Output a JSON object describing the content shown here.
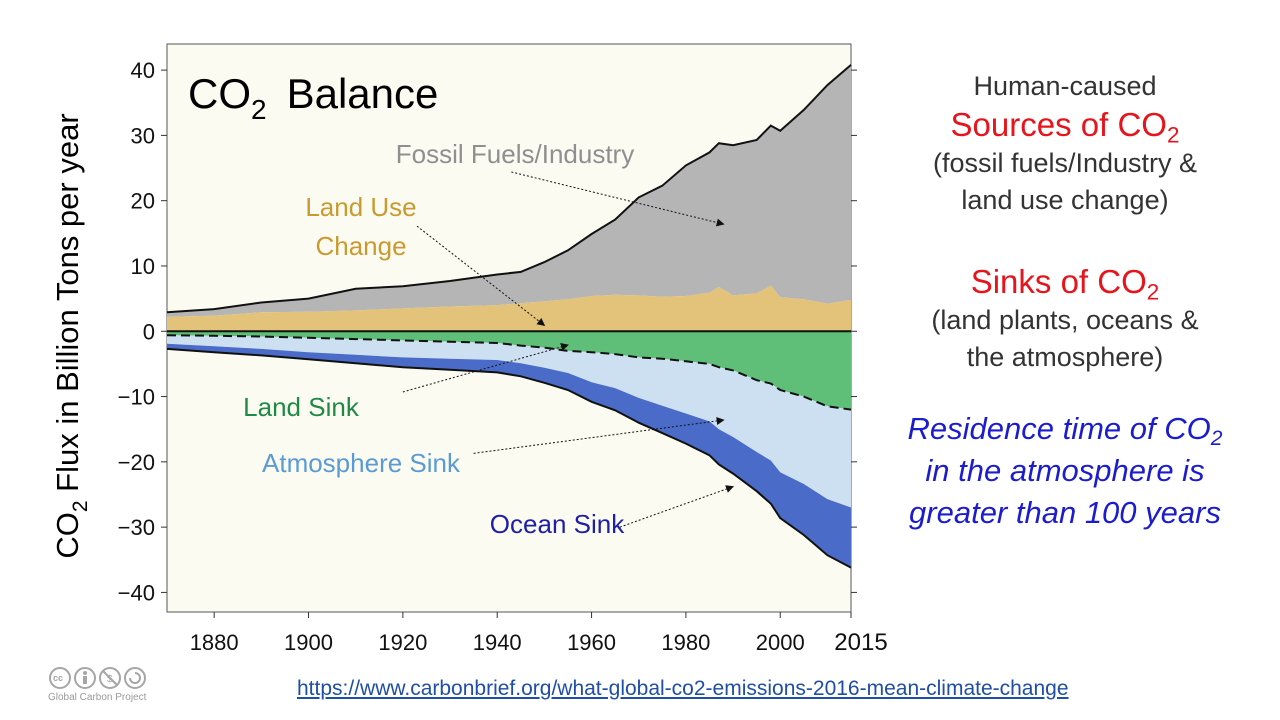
{
  "chart_data": {
    "type": "area",
    "title_main": "CO",
    "title_sub": "2",
    "title_rest": "Balance",
    "ylabel_prefix": "CO",
    "ylabel_sub": "2",
    "ylabel_rest": " Flux in Billion  Tons per year",
    "xlim": [
      1870,
      2015
    ],
    "ylim": [
      -43,
      44
    ],
    "y_ticks": [
      40,
      30,
      20,
      10,
      0,
      -10,
      -20,
      -30,
      -40
    ],
    "y_tick_labels": [
      "40",
      "30",
      "20",
      "10",
      "0",
      "−10",
      "−20",
      "−30",
      "−40"
    ],
    "x_ticks": [
      1880,
      1900,
      1920,
      1940,
      1960,
      1980,
      2000,
      2015
    ],
    "x_tick_labels": [
      "1880",
      "1900",
      "1920",
      "1940",
      "1960",
      "1980",
      "2000",
      "2015"
    ],
    "x": [
      1870,
      1880,
      1890,
      1900,
      1910,
      1920,
      1930,
      1940,
      1945,
      1950,
      1955,
      1960,
      1965,
      1970,
      1975,
      1980,
      1985,
      1987,
      1990,
      1995,
      1998,
      2000,
      2005,
      2010,
      2015
    ],
    "series": [
      {
        "name": "Land Use Change",
        "color": "#e3c27a",
        "values": [
          2.2,
          2.4,
          2.9,
          3.0,
          3.2,
          3.5,
          3.8,
          4.0,
          4.3,
          4.6,
          4.9,
          5.4,
          5.6,
          5.5,
          5.3,
          5.4,
          5.9,
          6.8,
          5.5,
          5.8,
          7.0,
          5.2,
          4.9,
          4.2,
          4.8
        ]
      },
      {
        "name": "Fossil Fuels/Industry",
        "color": "#b5b5b5",
        "values": [
          0.7,
          1.0,
          1.5,
          2.0,
          3.3,
          3.4,
          3.9,
          4.7,
          4.8,
          6.0,
          7.5,
          9.5,
          11.5,
          15.0,
          17.0,
          20.0,
          21.5,
          22.0,
          23.0,
          23.5,
          24.5,
          25.5,
          29.0,
          33.5,
          36.0
        ]
      },
      {
        "name": "Land Sink",
        "color": "#5fbf79",
        "values": [
          -0.6,
          -0.7,
          -0.8,
          -1.0,
          -1.2,
          -1.4,
          -1.6,
          -1.8,
          -2.2,
          -2.5,
          -3.0,
          -3.2,
          -3.5,
          -4.0,
          -4.2,
          -4.6,
          -5.0,
          -5.5,
          -6.0,
          -7.5,
          -8.0,
          -9.0,
          -10.0,
          -11.5,
          -12.0
        ]
      },
      {
        "name": "Atmosphere Sink",
        "color": "#cde0f1",
        "values": [
          -1.3,
          -1.6,
          -1.9,
          -2.2,
          -2.4,
          -2.6,
          -2.6,
          -2.6,
          -2.7,
          -3.1,
          -3.4,
          -4.6,
          -5.2,
          -6.2,
          -7.2,
          -8.0,
          -8.8,
          -9.5,
          -10.2,
          -11.0,
          -11.8,
          -12.6,
          -13.4,
          -14.2,
          -15.0
        ]
      },
      {
        "name": "Ocean Sink",
        "color": "#4a6cc8",
        "values": [
          -0.8,
          -0.9,
          -1.0,
          -1.1,
          -1.3,
          -1.5,
          -1.7,
          -1.9,
          -2.0,
          -2.3,
          -2.6,
          -3.0,
          -3.4,
          -3.8,
          -4.2,
          -4.6,
          -5.2,
          -5.4,
          -5.6,
          -6.0,
          -6.6,
          -7.0,
          -7.8,
          -8.6,
          -9.2
        ]
      }
    ],
    "annotations": {
      "fossil": "Fossil Fuels/Industry",
      "landuse_1": "Land Use",
      "landuse_2": "Change",
      "landsink": "Land Sink",
      "atmosink": "Atmosphere Sink",
      "oceansink": "Ocean Sink"
    },
    "grid": false,
    "legend": "none"
  },
  "right_panel": {
    "line1": "Human-caused",
    "sources_main": "Sources of CO",
    "sources_sub": "2",
    "sources_desc_1": "(fossil fuels/Industry &",
    "sources_desc_2": "land use change)",
    "sinks_main": "Sinks of CO",
    "sinks_sub": "2",
    "sinks_desc_1": "(land plants, oceans &",
    "sinks_desc_2": "the atmosphere)",
    "res_1_main": "Residence time of CO",
    "res_1_sub": "2",
    "res_2": "in the atmosphere is",
    "res_3": "greater than 100 years"
  },
  "source_link": "https://www.carbonbrief.org/what-global-co2-emissions-2016-mean-climate-change",
  "logo_caption": "Global Carbon Project"
}
